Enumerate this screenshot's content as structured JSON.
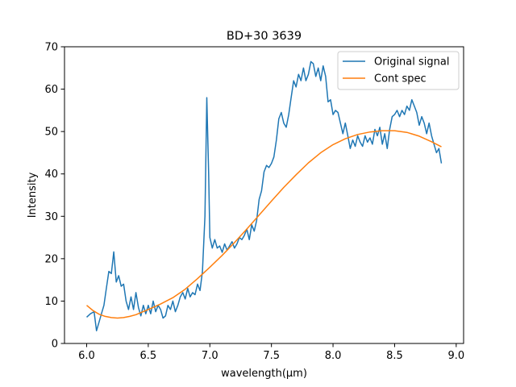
{
  "chart_data": {
    "type": "line",
    "title": "BD+30 3639",
    "xlabel": "wavelength(μm)",
    "ylabel": "Intensity",
    "xlim": [
      5.82,
      9.06
    ],
    "ylim": [
      0,
      70
    ],
    "xticks": [
      6.0,
      6.5,
      7.0,
      7.5,
      8.0,
      8.5,
      9.0
    ],
    "xtick_labels": [
      "6.0",
      "6.5",
      "7.0",
      "7.5",
      "8.0",
      "8.5",
      "9.0"
    ],
    "yticks": [
      0,
      10,
      20,
      30,
      40,
      50,
      60,
      70
    ],
    "ytick_labels": [
      "0",
      "10",
      "20",
      "30",
      "40",
      "50",
      "60",
      "70"
    ],
    "grid": false,
    "legend_position": "top-right",
    "series": [
      {
        "name": "Original signal",
        "color": "#1f77b4",
        "points": [
          [
            6.0,
            6.2
          ],
          [
            6.03,
            7.0
          ],
          [
            6.06,
            7.5
          ],
          [
            6.08,
            3.0
          ],
          [
            6.1,
            5.0
          ],
          [
            6.12,
            7.0
          ],
          [
            6.14,
            9.0
          ],
          [
            6.16,
            13.0
          ],
          [
            6.18,
            17.0
          ],
          [
            6.2,
            16.5
          ],
          [
            6.22,
            21.6
          ],
          [
            6.24,
            14.5
          ],
          [
            6.26,
            16.0
          ],
          [
            6.28,
            13.5
          ],
          [
            6.3,
            14.0
          ],
          [
            6.32,
            10.0
          ],
          [
            6.34,
            8.0
          ],
          [
            6.36,
            11.0
          ],
          [
            6.38,
            8.0
          ],
          [
            6.4,
            12.0
          ],
          [
            6.42,
            8.5
          ],
          [
            6.44,
            6.5
          ],
          [
            6.46,
            9.0
          ],
          [
            6.48,
            7.0
          ],
          [
            6.5,
            9.0
          ],
          [
            6.52,
            7.0
          ],
          [
            6.54,
            10.0
          ],
          [
            6.56,
            7.5
          ],
          [
            6.58,
            9.0
          ],
          [
            6.6,
            8.0
          ],
          [
            6.62,
            6.0
          ],
          [
            6.64,
            6.5
          ],
          [
            6.66,
            9.0
          ],
          [
            6.68,
            8.0
          ],
          [
            6.7,
            10.0
          ],
          [
            6.72,
            7.5
          ],
          [
            6.74,
            9.0
          ],
          [
            6.76,
            11.0
          ],
          [
            6.78,
            12.0
          ],
          [
            6.8,
            10.5
          ],
          [
            6.82,
            13.0
          ],
          [
            6.84,
            11.0
          ],
          [
            6.86,
            12.0
          ],
          [
            6.88,
            11.5
          ],
          [
            6.9,
            14.0
          ],
          [
            6.92,
            12.5
          ],
          [
            6.94,
            17.0
          ],
          [
            6.96,
            30.0
          ],
          [
            6.975,
            58.0
          ],
          [
            6.99,
            40.0
          ],
          [
            7.0,
            25.0
          ],
          [
            7.02,
            22.5
          ],
          [
            7.04,
            24.5
          ],
          [
            7.06,
            22.5
          ],
          [
            7.08,
            23.0
          ],
          [
            7.1,
            21.5
          ],
          [
            7.12,
            23.5
          ],
          [
            7.14,
            22.0
          ],
          [
            7.16,
            23.0
          ],
          [
            7.18,
            24.0
          ],
          [
            7.2,
            22.5
          ],
          [
            7.22,
            23.5
          ],
          [
            7.24,
            25.0
          ],
          [
            7.26,
            24.5
          ],
          [
            7.28,
            25.5
          ],
          [
            7.3,
            27.0
          ],
          [
            7.32,
            24.5
          ],
          [
            7.34,
            28.0
          ],
          [
            7.36,
            26.5
          ],
          [
            7.38,
            29.0
          ],
          [
            7.4,
            34.0
          ],
          [
            7.42,
            36.0
          ],
          [
            7.44,
            40.5
          ],
          [
            7.46,
            42.0
          ],
          [
            7.48,
            41.5
          ],
          [
            7.5,
            42.5
          ],
          [
            7.52,
            44.0
          ],
          [
            7.54,
            48.0
          ],
          [
            7.56,
            53.0
          ],
          [
            7.58,
            54.5
          ],
          [
            7.6,
            52.0
          ],
          [
            7.62,
            51.0
          ],
          [
            7.64,
            54.0
          ],
          [
            7.66,
            58.0
          ],
          [
            7.68,
            62.0
          ],
          [
            7.7,
            60.5
          ],
          [
            7.72,
            63.5
          ],
          [
            7.74,
            62.0
          ],
          [
            7.76,
            65.0
          ],
          [
            7.78,
            62.0
          ],
          [
            7.8,
            63.5
          ],
          [
            7.82,
            66.5
          ],
          [
            7.84,
            66.0
          ],
          [
            7.86,
            63.0
          ],
          [
            7.88,
            65.0
          ],
          [
            7.9,
            62.0
          ],
          [
            7.92,
            65.5
          ],
          [
            7.94,
            63.0
          ],
          [
            7.96,
            57.0
          ],
          [
            7.98,
            57.5
          ],
          [
            8.0,
            54.0
          ],
          [
            8.02,
            55.0
          ],
          [
            8.04,
            54.5
          ],
          [
            8.06,
            52.0
          ],
          [
            8.08,
            49.5
          ],
          [
            8.1,
            52.0
          ],
          [
            8.12,
            49.0
          ],
          [
            8.14,
            46.0
          ],
          [
            8.16,
            48.0
          ],
          [
            8.18,
            46.5
          ],
          [
            8.2,
            49.0
          ],
          [
            8.22,
            47.5
          ],
          [
            8.24,
            46.5
          ],
          [
            8.26,
            49.0
          ],
          [
            8.28,
            47.5
          ],
          [
            8.3,
            48.5
          ],
          [
            8.32,
            47.0
          ],
          [
            8.34,
            50.5
          ],
          [
            8.36,
            49.0
          ],
          [
            8.38,
            51.0
          ],
          [
            8.4,
            47.0
          ],
          [
            8.42,
            49.5
          ],
          [
            8.44,
            46.0
          ],
          [
            8.46,
            50.5
          ],
          [
            8.48,
            53.5
          ],
          [
            8.5,
            54.0
          ],
          [
            8.52,
            55.0
          ],
          [
            8.54,
            53.5
          ],
          [
            8.56,
            55.0
          ],
          [
            8.58,
            54.0
          ],
          [
            8.6,
            56.0
          ],
          [
            8.62,
            55.0
          ],
          [
            8.64,
            57.5
          ],
          [
            8.66,
            56.0
          ],
          [
            8.68,
            54.5
          ],
          [
            8.7,
            51.5
          ],
          [
            8.72,
            53.5
          ],
          [
            8.74,
            52.0
          ],
          [
            8.76,
            49.5
          ],
          [
            8.78,
            52.0
          ],
          [
            8.8,
            49.0
          ],
          [
            8.82,
            47.0
          ],
          [
            8.84,
            45.0
          ],
          [
            8.86,
            46.0
          ],
          [
            8.88,
            42.5
          ]
        ]
      },
      {
        "name": "Cont spec",
        "color": "#ff7f0e",
        "points": [
          [
            6.0,
            9.0
          ],
          [
            6.05,
            7.8
          ],
          [
            6.1,
            6.9
          ],
          [
            6.15,
            6.4
          ],
          [
            6.2,
            6.1
          ],
          [
            6.25,
            6.0
          ],
          [
            6.3,
            6.1
          ],
          [
            6.35,
            6.4
          ],
          [
            6.4,
            6.8
          ],
          [
            6.45,
            7.4
          ],
          [
            6.5,
            8.0
          ],
          [
            6.6,
            9.3
          ],
          [
            6.7,
            10.8
          ],
          [
            6.8,
            12.8
          ],
          [
            6.9,
            15.3
          ],
          [
            7.0,
            18.0
          ],
          [
            7.1,
            20.8
          ],
          [
            7.2,
            23.8
          ],
          [
            7.3,
            27.0
          ],
          [
            7.4,
            30.3
          ],
          [
            7.5,
            33.6
          ],
          [
            7.6,
            36.8
          ],
          [
            7.7,
            39.8
          ],
          [
            7.8,
            42.6
          ],
          [
            7.9,
            45.0
          ],
          [
            8.0,
            46.9
          ],
          [
            8.1,
            48.3
          ],
          [
            8.2,
            49.3
          ],
          [
            8.3,
            49.9
          ],
          [
            8.4,
            50.2
          ],
          [
            8.5,
            50.2
          ],
          [
            8.6,
            49.8
          ],
          [
            8.7,
            48.9
          ],
          [
            8.8,
            47.6
          ],
          [
            8.88,
            46.4
          ]
        ]
      }
    ]
  }
}
